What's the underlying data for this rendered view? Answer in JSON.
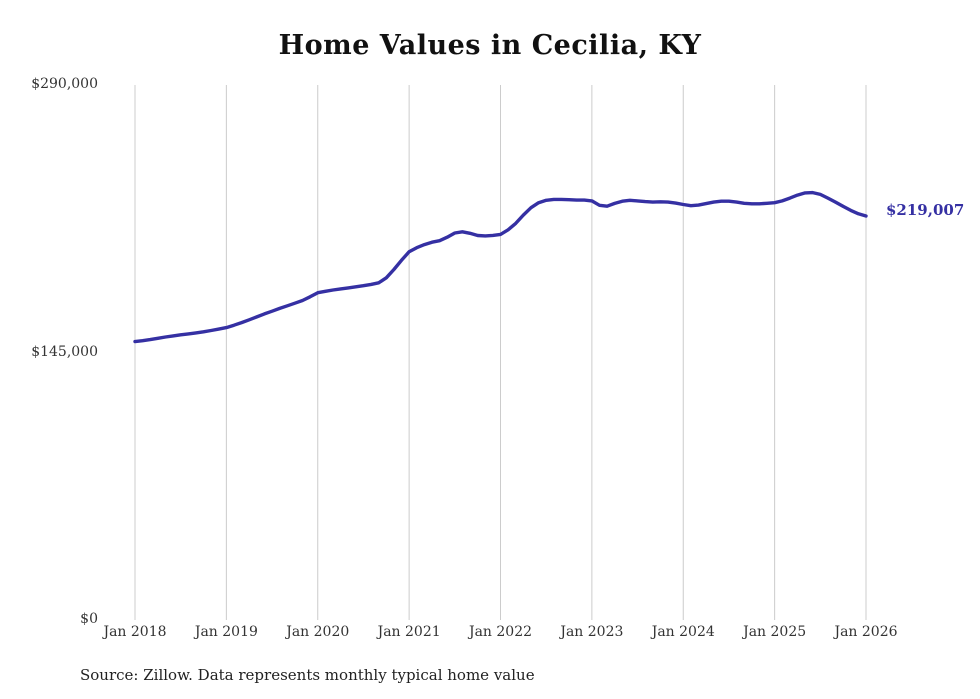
{
  "title": "Home Values in Cecilia, KY",
  "source_note": "Source: Zillow. Data represents monthly typical home value",
  "end_label": "$219,007",
  "colors": {
    "line": "#3530a3",
    "grid": "#cccccc",
    "text": "#333333",
    "title": "#111111"
  },
  "chart_data": {
    "type": "line",
    "title": "Home Values in Cecilia, KY",
    "xlabel": "",
    "ylabel": "",
    "ylim": [
      0,
      290000
    ],
    "y_ticks": [
      0,
      145000,
      290000
    ],
    "y_tick_labels": [
      "$0",
      "$145,000",
      "$290,000"
    ],
    "x_tick_labels": [
      "Jan 2018",
      "Jan 2019",
      "Jan 2020",
      "Jan 2021",
      "Jan 2022",
      "Jan 2023",
      "Jan 2024",
      "Jan 2025",
      "Jan 2026"
    ],
    "frequency": "monthly",
    "x_start": "Jan 2018",
    "x_end": "Jan 2026",
    "grid": "vertical-only",
    "legend_position": "none",
    "last_value": 219007,
    "series": [
      {
        "name": "Typical home value",
        "values": [
          150900,
          151400,
          152000,
          152700,
          153400,
          154000,
          154600,
          155100,
          155600,
          156200,
          156900,
          157700,
          158500,
          159800,
          161200,
          162700,
          164300,
          165900,
          167400,
          168900,
          170300,
          171700,
          173200,
          175200,
          177400,
          178200,
          178900,
          179500,
          180000,
          180600,
          181200,
          181900,
          182800,
          185500,
          190000,
          195000,
          199600,
          201800,
          203500,
          204800,
          205600,
          207500,
          209800,
          210400,
          209600,
          208400,
          208200,
          208500,
          209000,
          211500,
          215000,
          219500,
          223500,
          226200,
          227500,
          228000,
          228000,
          227800,
          227600,
          227600,
          227200,
          224800,
          224300,
          225800,
          227000,
          227500,
          227200,
          226800,
          226500,
          226700,
          226500,
          226000,
          225200,
          224600,
          224900,
          225700,
          226500,
          227000,
          227000,
          226500,
          225900,
          225600,
          225600,
          225900,
          226200,
          227200,
          228700,
          230300,
          231500,
          231700,
          230700,
          228700,
          226500,
          224200,
          222000,
          220200,
          219007
        ]
      }
    ]
  }
}
